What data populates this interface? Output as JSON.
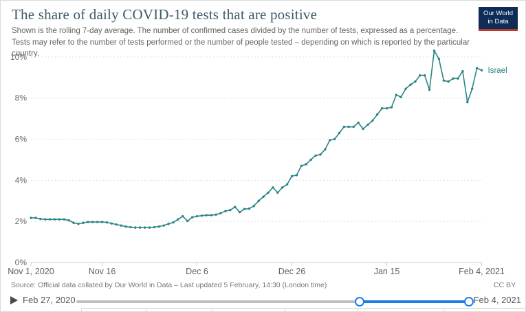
{
  "header": {
    "title": "The share of daily COVID-19 tests that are positive",
    "subtitle": "Shown is the rolling 7-day average. The number of confirmed cases divided by the number of tests, expressed as a percentage. Tests may refer to the number of tests performed or the number of people tested – depending on which is reported by the particular country.",
    "logo_line1": "Our World",
    "logo_line2": "in Data",
    "logo_bg_color": "#0d2d57",
    "logo_bar_color": "#c0342c"
  },
  "chart_data": {
    "type": "line",
    "title": "The share of daily COVID-19 tests that are positive",
    "xlabel": "",
    "ylabel": "",
    "grid": "horizontal-dashed",
    "ylim": [
      0,
      10.5
    ],
    "y_ticks": [
      "0%",
      "2%",
      "4%",
      "6%",
      "8%",
      "10%"
    ],
    "y_tick_values": [
      0,
      2,
      4,
      6,
      8,
      10
    ],
    "x_ticks": [
      {
        "label": "Nov 1, 2020",
        "day": 0
      },
      {
        "label": "Nov 16",
        "day": 15
      },
      {
        "label": "Dec 6",
        "day": 35
      },
      {
        "label": "Dec 26",
        "day": 55
      },
      {
        "label": "Jan 15",
        "day": 75
      },
      {
        "label": "Feb 4, 2021",
        "day": 95
      }
    ],
    "series": [
      {
        "name": "Israel",
        "color": "#2a8485",
        "start_date": "Nov 1, 2020",
        "end_date": "Feb 4, 2021",
        "cadence": "daily",
        "unit": "%",
        "values": [
          2.17,
          2.17,
          2.12,
          2.1,
          2.1,
          2.1,
          2.1,
          2.1,
          2.05,
          1.93,
          1.88,
          1.93,
          1.97,
          1.97,
          1.97,
          1.97,
          1.95,
          1.9,
          1.85,
          1.8,
          1.75,
          1.72,
          1.7,
          1.7,
          1.7,
          1.7,
          1.72,
          1.75,
          1.8,
          1.88,
          1.95,
          2.1,
          2.25,
          2.02,
          2.2,
          2.25,
          2.28,
          2.3,
          2.3,
          2.33,
          2.4,
          2.5,
          2.55,
          2.7,
          2.45,
          2.6,
          2.62,
          2.75,
          3.0,
          3.2,
          3.4,
          3.65,
          3.4,
          3.65,
          3.8,
          4.2,
          4.25,
          4.7,
          4.78,
          5.0,
          5.2,
          5.25,
          5.5,
          5.95,
          6.0,
          6.3,
          6.6,
          6.6,
          6.6,
          6.8,
          6.5,
          6.7,
          6.9,
          7.2,
          7.5,
          7.5,
          7.55,
          8.15,
          8.05,
          8.45,
          8.65,
          8.8,
          9.1,
          9.1,
          8.4,
          10.3,
          9.9,
          8.85,
          8.8,
          8.95,
          8.95,
          9.3,
          7.8,
          8.45,
          9.45,
          9.35
        ]
      }
    ]
  },
  "footer": {
    "source": "Source: Official data collated by Our World in Data – Last updated 5 February, 14:30 (London time)",
    "license": "CC BY"
  },
  "timeline": {
    "play_icon": "play-triangle-icon",
    "start_label": "Feb 27, 2020",
    "end_label": "Feb 4, 2021",
    "selected_range_start_fraction": 0.72,
    "selected_range_end_fraction": 1.0,
    "active_color": "#1d7de2",
    "track_color": "#bcc0c4"
  }
}
